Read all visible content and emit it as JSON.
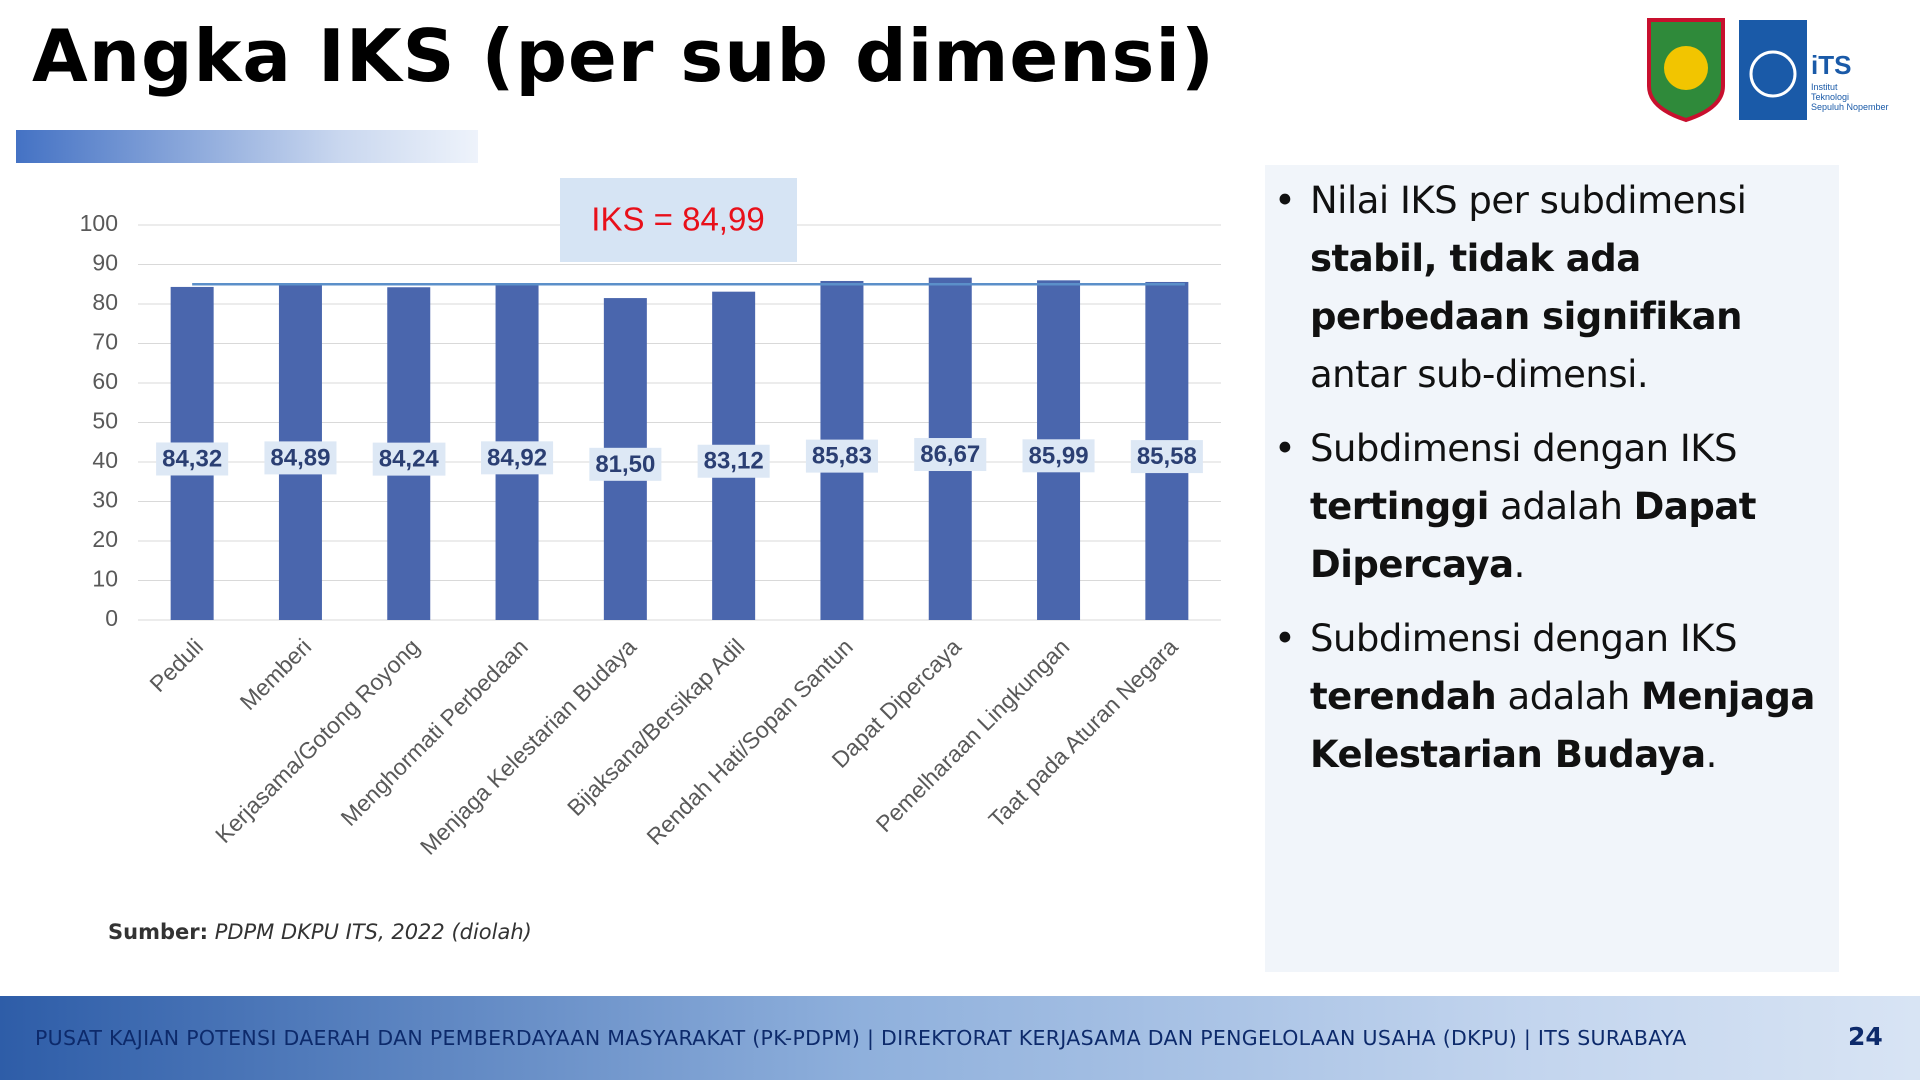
{
  "header": {
    "title": "Angka IKS (per sub dimensi)"
  },
  "logo": {
    "short": "iTS",
    "lines": [
      "Institut",
      "Teknologi",
      "Sepuluh Nopember"
    ]
  },
  "chart_data": {
    "type": "bar",
    "categories": [
      "Peduli",
      "Memberi",
      "Kerjasama/Gotong Royong",
      "Menghormati Perbedaan",
      "Menjaga Kelestarian Budaya",
      "Bijaksana/Bersikap Adil",
      "Rendah Hati/Sopan Santun",
      "Dapat Dipercaya",
      "Pemelharaan Lingkungan",
      "Taat pada Aturan Negara"
    ],
    "values": [
      84.32,
      84.89,
      84.24,
      84.92,
      81.5,
      83.12,
      85.83,
      86.67,
      85.99,
      85.58
    ],
    "value_labels": [
      "84,32",
      "84,89",
      "84,24",
      "84,92",
      "81,50",
      "83,12",
      "85,83",
      "86,67",
      "85,99",
      "85,58"
    ],
    "color": "#4a66ad",
    "ylim": [
      0,
      100
    ],
    "yticks": [
      0,
      10,
      20,
      30,
      40,
      50,
      60,
      70,
      80,
      90,
      100
    ],
    "grid": true,
    "reference_line": {
      "value": 84.99,
      "label": "IKS = 84,99",
      "color": "#5b8fc9"
    }
  },
  "source": {
    "label": "Sumber:",
    "text": "PDPM DKPU ITS, 2022 (diolah)"
  },
  "bullets": [
    [
      {
        "text": "Nilai IKS per subdimensi ",
        "bold": false
      },
      {
        "text": "stabil, tidak ada perbedaan signifikan",
        "bold": true
      },
      {
        "text": " antar sub-dimensi.",
        "bold": false
      }
    ],
    [
      {
        "text": "Subdimensi dengan IKS ",
        "bold": false
      },
      {
        "text": "tertinggi",
        "bold": true
      },
      {
        "text": " adalah ",
        "bold": false
      },
      {
        "text": "Dapat Dipercaya",
        "bold": true
      },
      {
        "text": ".",
        "bold": false
      }
    ],
    [
      {
        "text": "Subdimensi dengan IKS ",
        "bold": false
      },
      {
        "text": "terendah",
        "bold": true
      },
      {
        "text": " adalah ",
        "bold": false
      },
      {
        "text": "Menjaga Kelestarian Budaya",
        "bold": true
      },
      {
        "text": ".",
        "bold": false
      }
    ]
  ],
  "footer": {
    "text": "PUSAT KAJIAN POTENSI DAERAH DAN PEMBERDAYAAN MASYARAKAT (PK-PDPM) | DIREKTORAT KERJASAMA DAN PENGELOLAAN USAHA (DKPU) | ITS SURABAYA",
    "page": "24"
  }
}
